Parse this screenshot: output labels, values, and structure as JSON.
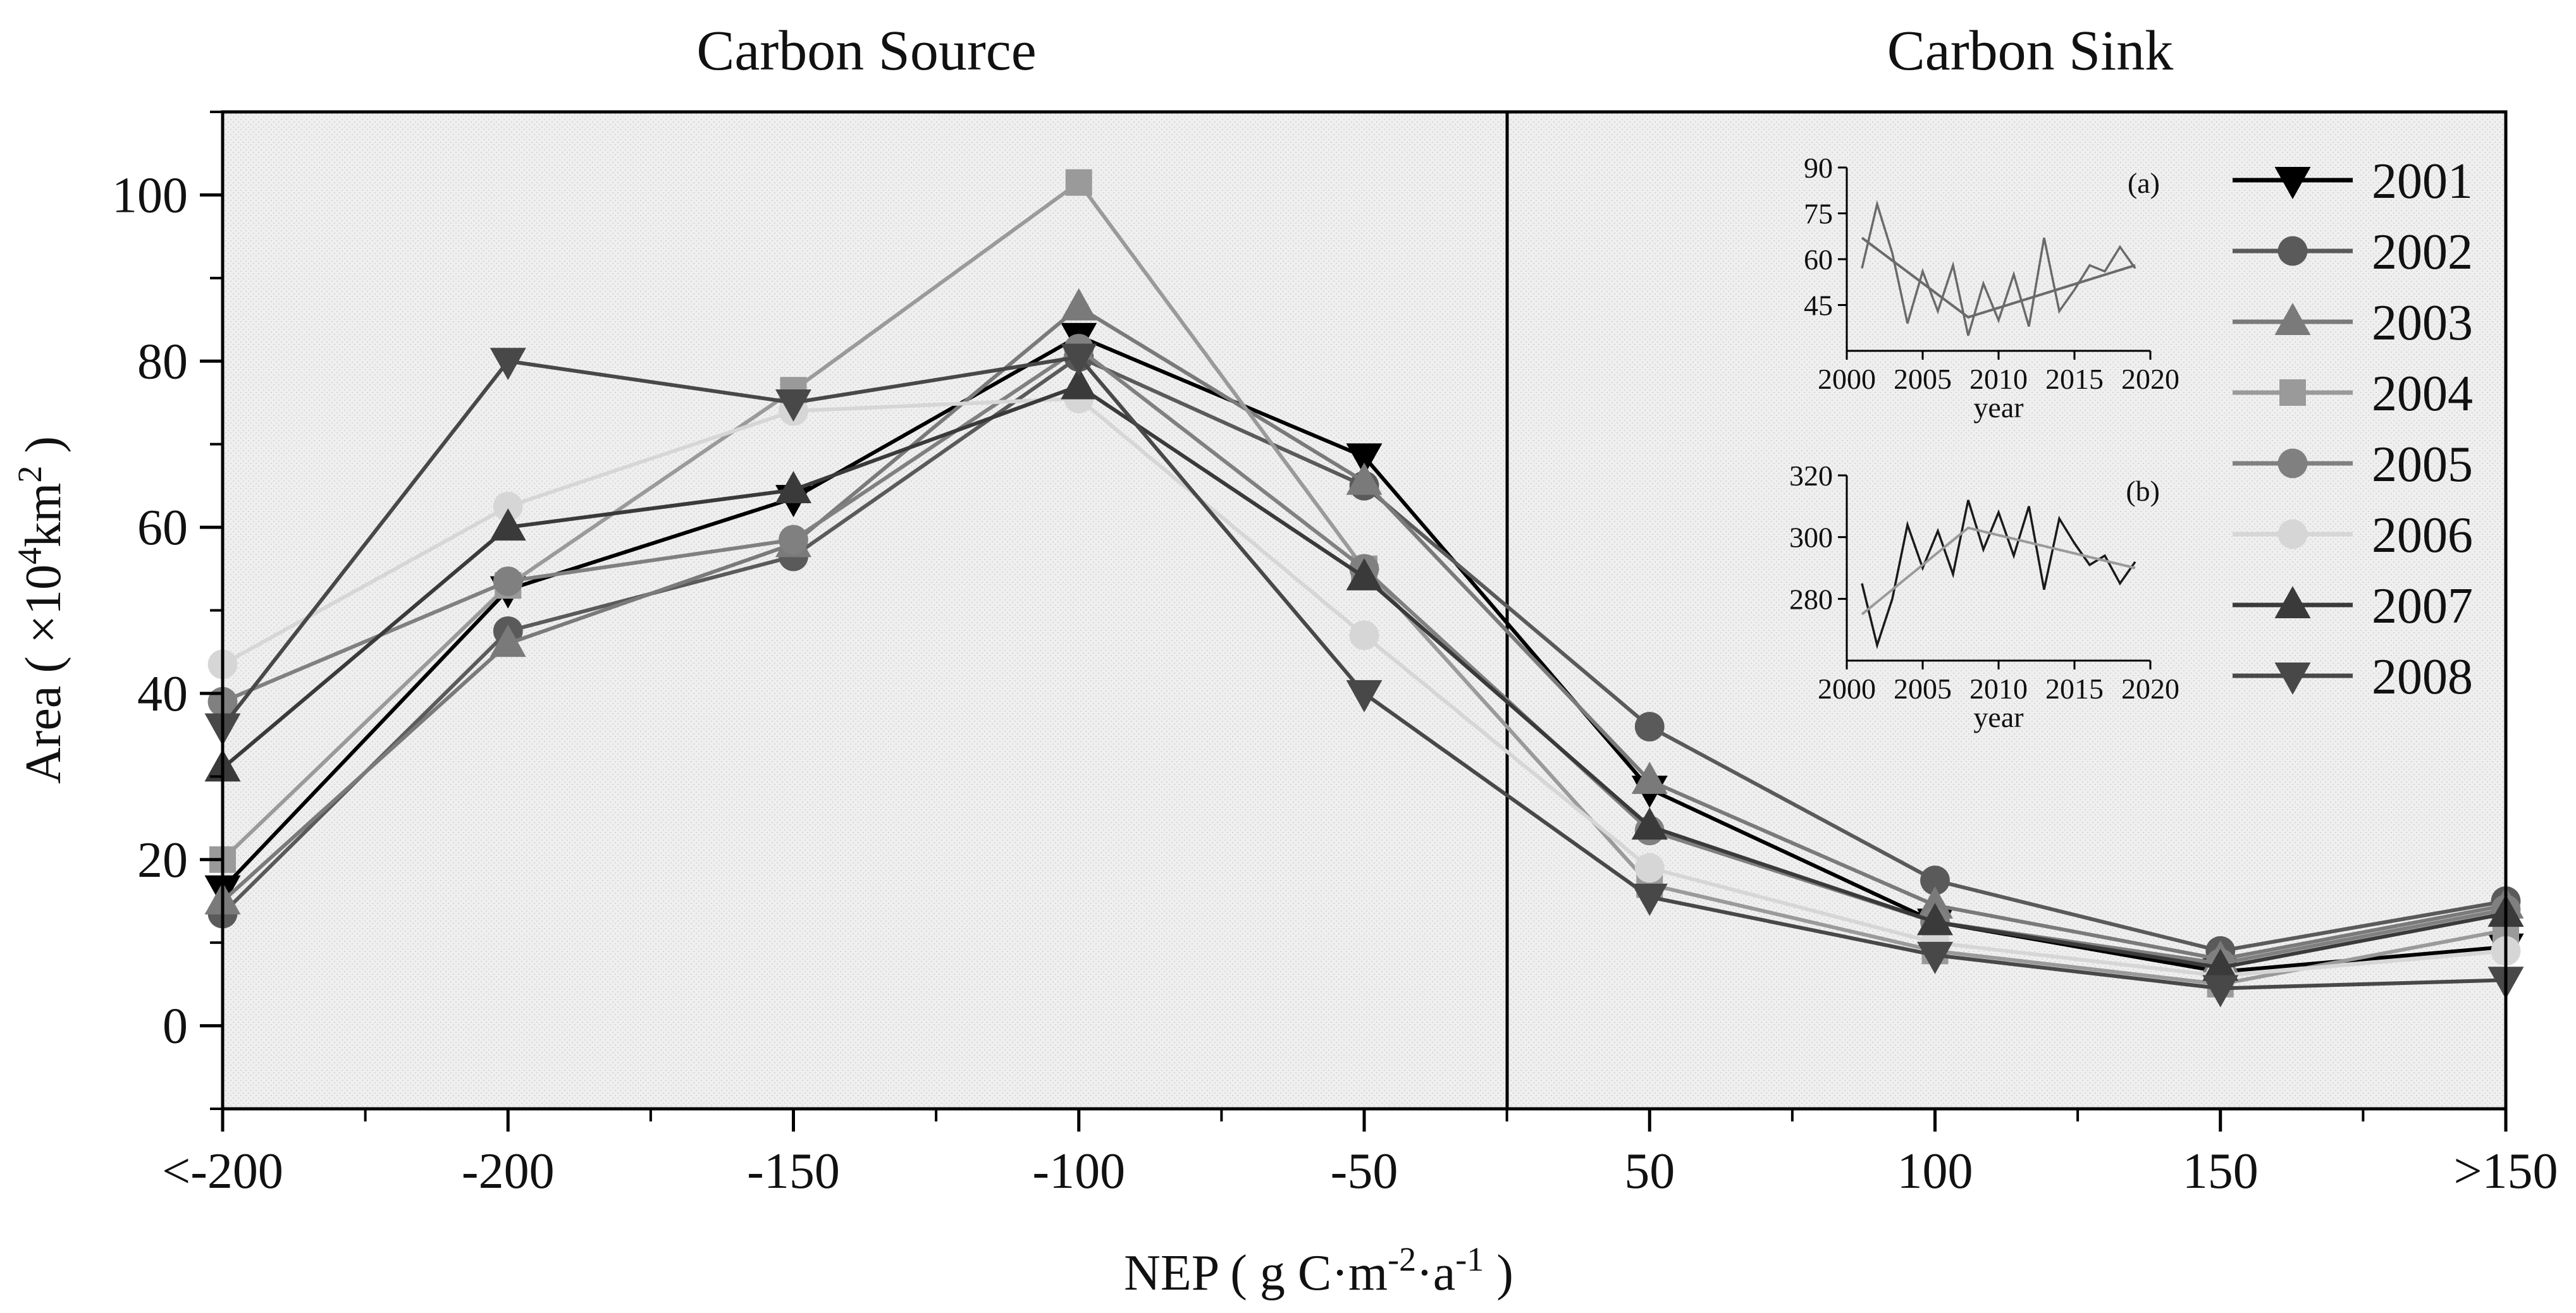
{
  "chart_data": {
    "type": "line",
    "categories": [
      "<-200",
      "-200",
      "-150",
      "-100",
      "-50",
      "50",
      "100",
      "150",
      ">150"
    ],
    "ylabel": "Area ( ×10",
    "ylabel_sup": "4",
    "ylabel_unit": "km",
    "ylabel_unit_sup": "2",
    "ylabel_close": " )",
    "xlabel": "NEP ( g C·m",
    "xlabel_sup1": "-2",
    "xlabel_mid": "·a",
    "xlabel_sup2": "-1",
    "xlabel_close": " )",
    "ylim": [
      -10,
      110
    ],
    "yticks": [
      "0",
      "20",
      "40",
      "60",
      "80",
      "100"
    ],
    "region_labels": [
      "Carbon Source",
      "Carbon Sink"
    ],
    "series": [
      {
        "name": "2001",
        "marker": "triangle-down",
        "color": "#000000",
        "values": [
          16.5,
          52.5,
          63.5,
          83,
          68.5,
          28.5,
          12.5,
          6.5,
          9.5
        ]
      },
      {
        "name": "2002",
        "marker": "circle",
        "color": "#5a5a5a",
        "values": [
          13.5,
          47.5,
          56.5,
          80.5,
          65,
          36,
          17.5,
          9,
          15
        ]
      },
      {
        "name": "2003",
        "marker": "triangle-up",
        "color": "#7a7a7a",
        "values": [
          15,
          46,
          58,
          86.5,
          65.5,
          29.5,
          14.5,
          8,
          14.5
        ]
      },
      {
        "name": "2004",
        "marker": "square",
        "color": "#9a9a9a",
        "values": [
          20,
          53,
          76.5,
          101.5,
          55,
          17,
          9,
          5,
          11.5
        ]
      },
      {
        "name": "2005",
        "marker": "circle",
        "color": "#808080",
        "values": [
          39,
          53.5,
          58.5,
          81.5,
          55,
          23.5,
          12.5,
          7.5,
          14
        ]
      },
      {
        "name": "2006",
        "marker": "circle",
        "color": "#d6d6d6",
        "values": [
          43.5,
          62.5,
          74,
          75.5,
          47,
          19,
          10,
          6,
          9
        ]
      },
      {
        "name": "2007",
        "marker": "triangle-up",
        "color": "#3a3a3a",
        "values": [
          31,
          60,
          64.5,
          77,
          54,
          24,
          12.5,
          7,
          13.5
        ]
      },
      {
        "name": "2008",
        "marker": "triangle-down",
        "color": "#484848",
        "values": [
          36,
          80,
          75,
          80.5,
          40,
          15.5,
          8.5,
          4.5,
          5.5
        ]
      }
    ],
    "insets": [
      {
        "label": "(a)",
        "xlabel": "year",
        "xlim": [
          2000,
          2020
        ],
        "ylim": [
          30,
          90
        ],
        "yticks": [
          "45",
          "60",
          "75",
          "90"
        ],
        "xticks": [
          "2000",
          "2005",
          "2010",
          "2015",
          "2020"
        ],
        "line_color": "#6a6a6a",
        "trend_color": "#6a6a6a",
        "x": [
          2001,
          2002,
          2003,
          2004,
          2005,
          2006,
          2007,
          2008,
          2009,
          2010,
          2011,
          2012,
          2013,
          2014,
          2015,
          2016,
          2017,
          2018,
          2019
        ],
        "y": [
          57,
          78,
          62,
          39,
          56,
          43,
          58,
          35,
          52,
          40,
          55,
          38,
          67,
          43,
          50,
          58,
          56,
          64,
          57
        ],
        "trend": [
          [
            2001,
            67
          ],
          [
            2008,
            41
          ],
          [
            2019,
            58
          ]
        ]
      },
      {
        "label": "(b)",
        "xlabel": "year",
        "xlim": [
          2000,
          2020
        ],
        "ylim": [
          260,
          320
        ],
        "yticks": [
          "280",
          "300",
          "320"
        ],
        "xticks": [
          "2000",
          "2005",
          "2010",
          "2015",
          "2020"
        ],
        "line_color": "#1a1a1a",
        "trend_color": "#9a9a9a",
        "x": [
          2001,
          2002,
          2003,
          2004,
          2005,
          2006,
          2007,
          2008,
          2009,
          2010,
          2011,
          2012,
          2013,
          2014,
          2015,
          2016,
          2017,
          2018,
          2019
        ],
        "y": [
          285,
          265,
          280,
          304,
          290,
          302,
          288,
          312,
          296,
          308,
          294,
          310,
          283,
          306,
          298,
          291,
          294,
          285,
          292
        ],
        "trend": [
          [
            2001,
            275
          ],
          [
            2008,
            303
          ],
          [
            2019,
            290
          ]
        ]
      }
    ]
  }
}
